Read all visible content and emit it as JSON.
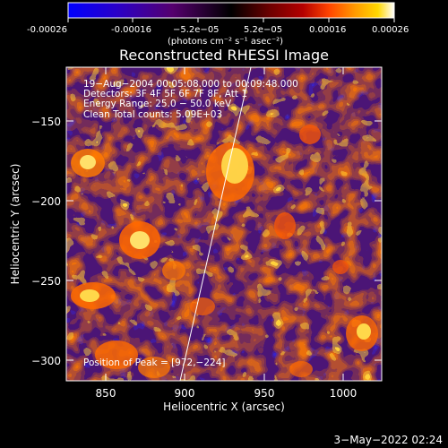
{
  "colorbar": {
    "tick_labels": [
      "-0.00026",
      "-0.00016",
      "−5.2e−05",
      "5.2e−05",
      "0.00016",
      "0.00026"
    ],
    "unit_label": "(photons cm⁻² s⁻¹ asec⁻²)",
    "colors": [
      "#0000ff",
      "#2a00c8",
      "#55006e",
      "#000000",
      "#6e0000",
      "#b40000",
      "#ff4400",
      "#ff9a00",
      "#ffd800",
      "#ffffff"
    ]
  },
  "image": {
    "title": "Reconstructed RHESSI Image",
    "info_lines": [
      "19−Aug−2004 00:05:08.000 to 00:09:48.000",
      "Detectors: 3F 4F 5F 6F 7F 8F, Att 1",
      "Energy Range: 25.0 − 50.0 keV",
      "Clean     Total counts: 5.09E+03"
    ],
    "peak_text": "Position of Peak = [972,−224]",
    "x_axis_label": "Heliocentric X (arcsec)",
    "y_axis_label": "Heliocentric Y (arcsec)",
    "x_ticks": [
      "850",
      "900",
      "950",
      "1000"
    ],
    "y_ticks": [
      "−150",
      "−200",
      "−250",
      "−300"
    ]
  },
  "footer": {
    "date": "3−May−2022 02:24"
  }
}
